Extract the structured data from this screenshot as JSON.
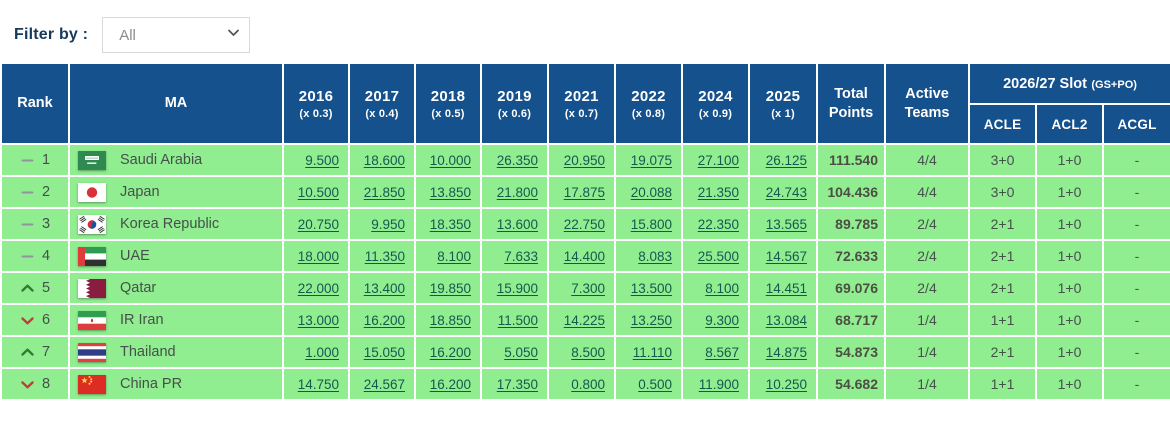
{
  "filter": {
    "label": "Filter by :",
    "selected_option": "All"
  },
  "colors": {
    "header_bg": "#15518c",
    "row_bg": "#90ed90",
    "link": "#15594e",
    "body_text": "#474f4c",
    "total_text": "#4c4e44",
    "rank_up": "#2e7d32",
    "rank_down": "#c63a3a",
    "rank_same": "#8f959b",
    "filter_label": "#163a5a"
  },
  "table": {
    "headers": {
      "rank": "Rank",
      "ma": "MA",
      "years": [
        {
          "year": "2016",
          "mult": "(x 0.3)"
        },
        {
          "year": "2017",
          "mult": "(x 0.4)"
        },
        {
          "year": "2018",
          "mult": "(x 0.5)"
        },
        {
          "year": "2019",
          "mult": "(x 0.6)"
        },
        {
          "year": "2021",
          "mult": "(x 0.7)"
        },
        {
          "year": "2022",
          "mult": "(x 0.8)"
        },
        {
          "year": "2024",
          "mult": "(x 0.9)"
        },
        {
          "year": "2025",
          "mult": "(x 1)"
        }
      ],
      "total": "Total Points",
      "active": "Active Teams",
      "slot": {
        "title": "2026/27 Slot",
        "suffix": "(GS+PO)",
        "subs": [
          "ACLE",
          "ACL2",
          "ACGL"
        ]
      }
    },
    "rows": [
      {
        "rank": "1",
        "change": "same",
        "country": "Saudi Arabia",
        "flag": "saudi-arabia",
        "values": [
          "9.500",
          "18.600",
          "10.000",
          "26.350",
          "20.950",
          "19.075",
          "27.100",
          "26.125"
        ],
        "total": "111.540",
        "active": "4/4",
        "acle": "3+0",
        "acl2": "1+0",
        "acgl": "-"
      },
      {
        "rank": "2",
        "change": "same",
        "country": "Japan",
        "flag": "japan",
        "values": [
          "10.500",
          "21.850",
          "13.850",
          "21.800",
          "17.875",
          "20.088",
          "21.350",
          "24.743"
        ],
        "total": "104.436",
        "active": "4/4",
        "acle": "3+0",
        "acl2": "1+0",
        "acgl": "-"
      },
      {
        "rank": "3",
        "change": "same",
        "country": "Korea Republic",
        "flag": "korea-republic",
        "values": [
          "20.750",
          "9.950",
          "18.350",
          "13.600",
          "22.750",
          "15.800",
          "22.350",
          "13.565"
        ],
        "total": "89.785",
        "active": "2/4",
        "acle": "2+1",
        "acl2": "1+0",
        "acgl": "-"
      },
      {
        "rank": "4",
        "change": "same",
        "country": "UAE",
        "flag": "uae",
        "values": [
          "18.000",
          "11.350",
          "8.100",
          "7.633",
          "14.400",
          "8.083",
          "25.500",
          "14.567"
        ],
        "total": "72.633",
        "active": "2/4",
        "acle": "2+1",
        "acl2": "1+0",
        "acgl": "-"
      },
      {
        "rank": "5",
        "change": "up",
        "country": "Qatar",
        "flag": "qatar",
        "values": [
          "22.000",
          "13.400",
          "19.850",
          "15.900",
          "7.300",
          "13.500",
          "8.100",
          "14.451"
        ],
        "total": "69.076",
        "active": "2/4",
        "acle": "2+1",
        "acl2": "1+0",
        "acgl": "-"
      },
      {
        "rank": "6",
        "change": "down",
        "country": "IR Iran",
        "flag": "ir-iran",
        "values": [
          "13.000",
          "16.200",
          "18.850",
          "11.500",
          "14.225",
          "13.250",
          "9.300",
          "13.084"
        ],
        "total": "68.717",
        "active": "1/4",
        "acle": "1+1",
        "acl2": "1+0",
        "acgl": "-"
      },
      {
        "rank": "7",
        "change": "up",
        "country": "Thailand",
        "flag": "thailand",
        "values": [
          "1.000",
          "15.050",
          "16.200",
          "5.050",
          "8.500",
          "11.110",
          "8.567",
          "14.875"
        ],
        "total": "54.873",
        "active": "1/4",
        "acle": "2+1",
        "acl2": "1+0",
        "acgl": "-"
      },
      {
        "rank": "8",
        "change": "down",
        "country": "China PR",
        "flag": "china-pr",
        "values": [
          "14.750",
          "24.567",
          "16.200",
          "17.350",
          "0.800",
          "0.500",
          "11.900",
          "10.250"
        ],
        "total": "54.682",
        "active": "1/4",
        "acle": "1+1",
        "acl2": "1+0",
        "acgl": "-"
      }
    ]
  }
}
